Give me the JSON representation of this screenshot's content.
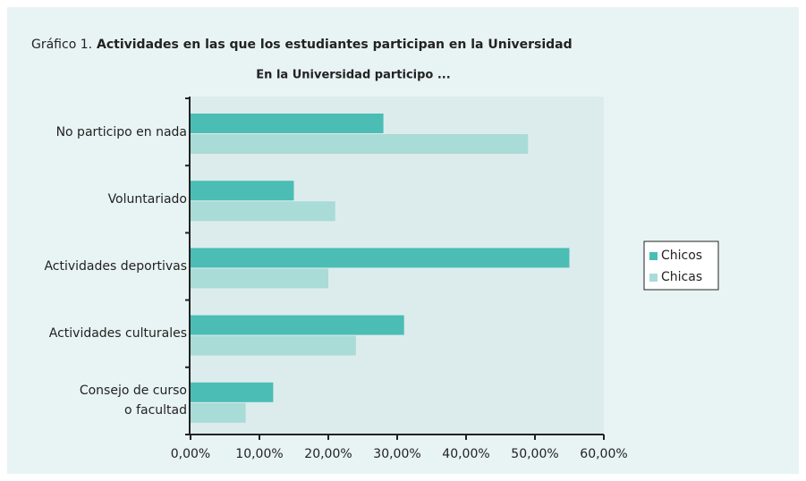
{
  "chart_data": {
    "type": "barh",
    "figure_label": "Gráfico 1.",
    "title": "Actividades en las que los estudiantes participan en la Universidad",
    "subtitle": "En la Universidad participo ...",
    "categories": [
      "No participo en nada",
      "Voluntariado",
      "Actividades deportivas",
      "Actividades culturales",
      "Consejo de curso\no facultad"
    ],
    "series": [
      {
        "name": "Chicos",
        "color": "#4bbdb5",
        "values": [
          28,
          15,
          55,
          31,
          12
        ]
      },
      {
        "name": "Chicas",
        "color": "#a9dbd7",
        "values": [
          49,
          21,
          20,
          24,
          8
        ]
      }
    ],
    "xlim": [
      0,
      60
    ],
    "xticks": [
      {
        "value": 0,
        "label": "0,00%"
      },
      {
        "value": 10,
        "label": "10,00%"
      },
      {
        "value": 20,
        "label": "20,00%"
      },
      {
        "value": 30,
        "label": "30,00%"
      },
      {
        "value": 40,
        "label": "40,00%"
      },
      {
        "value": 50,
        "label": "50,00%"
      },
      {
        "value": 60,
        "label": "60,00%"
      }
    ],
    "legend": "right"
  }
}
